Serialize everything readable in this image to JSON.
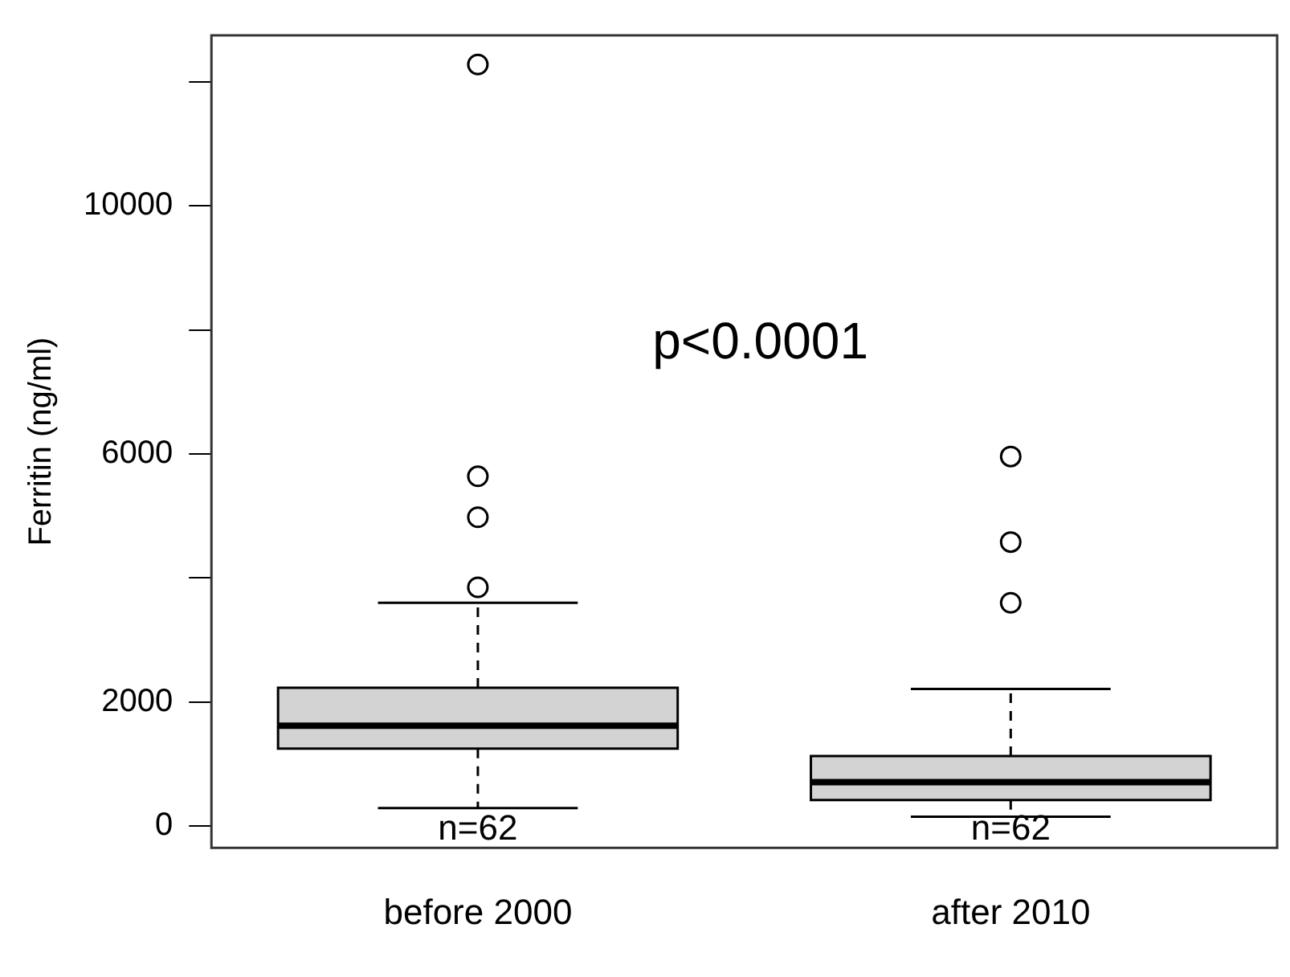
{
  "chart_data": {
    "type": "box",
    "categories": [
      "before 2000",
      "after 2010"
    ],
    "boxes": [
      {
        "low": 290,
        "q1": 1250,
        "median": 1620,
        "q3": 2230,
        "high": 3600,
        "outliers": [
          3850,
          4980,
          5640,
          12280
        ]
      },
      {
        "low": 150,
        "q1": 420,
        "median": 710,
        "q3": 1130,
        "high": 2210,
        "outliers": [
          3600,
          4580,
          5960
        ]
      }
    ],
    "color": "#d3d3d3",
    "ylabel": "Ferritin (ng/ml)",
    "ylim": [
      -350,
      12750
    ],
    "yticks": [
      0,
      2000,
      {
        "value": 4000,
        "label": null
      },
      6000,
      {
        "value": 8000,
        "label": null
      },
      10000,
      {
        "value": 12000,
        "label": null
      }
    ],
    "grid": false,
    "legend": false,
    "marker": "circle",
    "annotations": [
      "p<0.0001",
      "n=62",
      "n=62"
    ]
  }
}
